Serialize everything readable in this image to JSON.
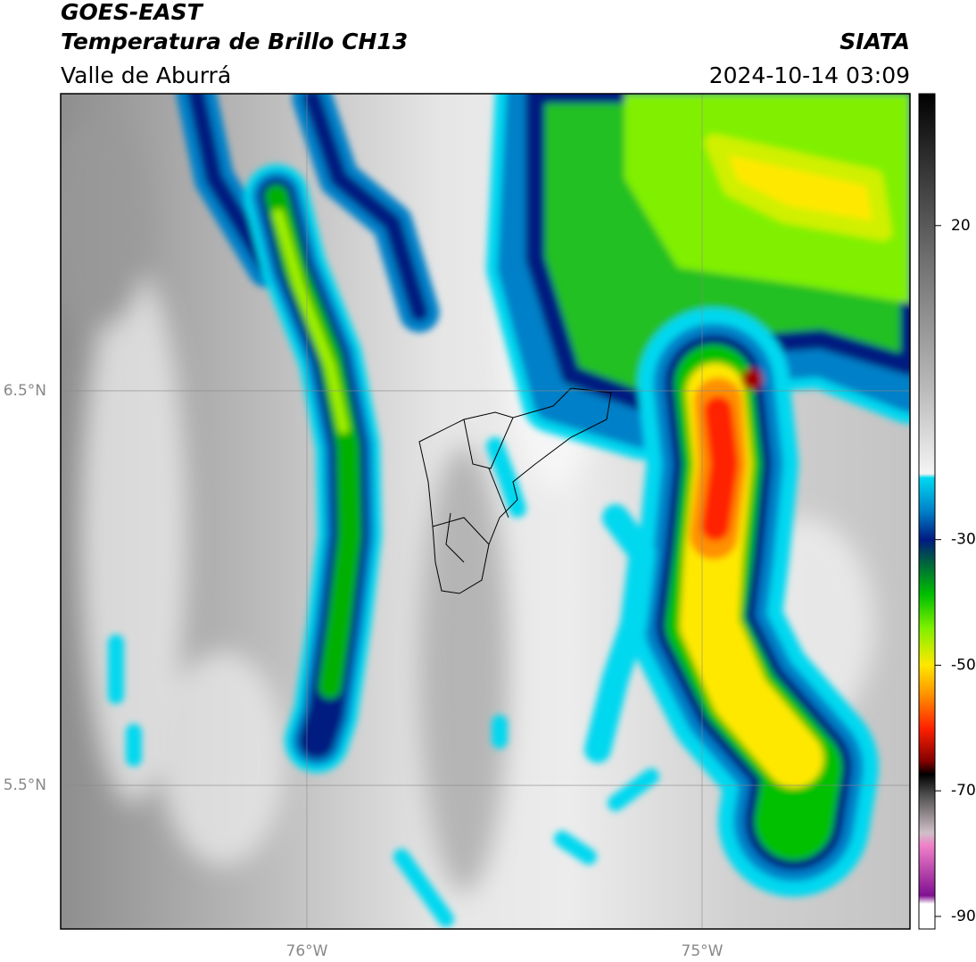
{
  "header": {
    "title": "GOES-EAST",
    "subtitle": "Temperatura de Brillo CH13",
    "region": "Valle de Aburrá",
    "source": "SIATA",
    "datetime": "2024-10-14 03:09"
  },
  "map": {
    "lonlim": [
      -76.623,
      -74.474
    ],
    "latlim": [
      5.136,
      7.253
    ],
    "lonticks": [
      {
        "value": -76,
        "label": "76°W"
      },
      {
        "value": -75,
        "label": "75°W"
      }
    ],
    "latticks": [
      {
        "value": 6.5,
        "label": "6.5°N"
      },
      {
        "value": 5.5,
        "label": "5.5°N"
      }
    ],
    "grid": true
  },
  "colorbar": {
    "clim": [
      -92,
      41
    ],
    "ticks": [
      20,
      -30,
      -50,
      -70,
      -90
    ]
  }
}
